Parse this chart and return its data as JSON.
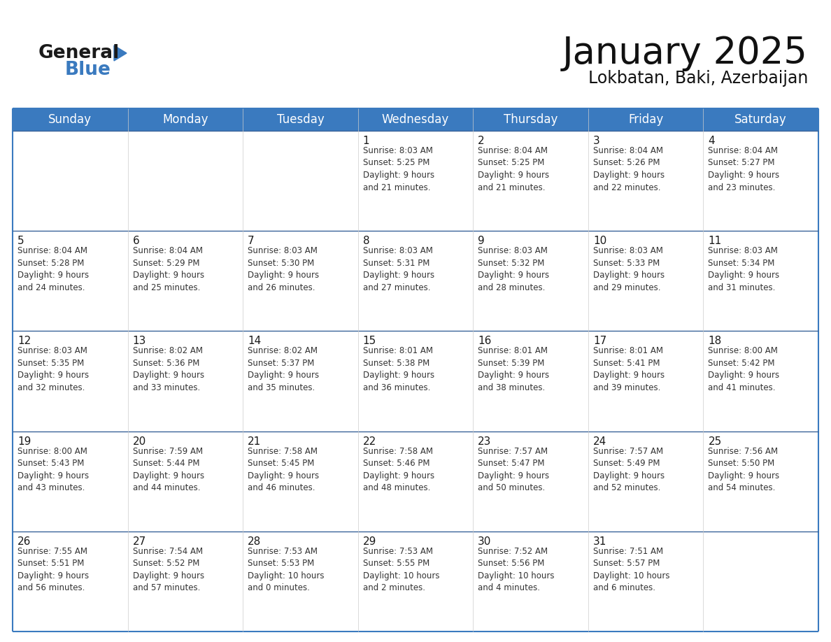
{
  "title": "January 2025",
  "subtitle": "Lokbatan, Baki, Azerbaijan",
  "header_color": "#3a7abf",
  "header_text_color": "#ffffff",
  "day_names": [
    "Sunday",
    "Monday",
    "Tuesday",
    "Wednesday",
    "Thursday",
    "Friday",
    "Saturday"
  ],
  "cell_bg": "#ffffff",
  "row_separator_color": "#3a6499",
  "outer_border_color": "#3a7abf",
  "text_color": "#333333",
  "day_num_color": "#1a1a1a",
  "calendar": [
    [
      {
        "day": "",
        "info": ""
      },
      {
        "day": "",
        "info": ""
      },
      {
        "day": "",
        "info": ""
      },
      {
        "day": "1",
        "info": "Sunrise: 8:03 AM\nSunset: 5:25 PM\nDaylight: 9 hours\nand 21 minutes."
      },
      {
        "day": "2",
        "info": "Sunrise: 8:04 AM\nSunset: 5:25 PM\nDaylight: 9 hours\nand 21 minutes."
      },
      {
        "day": "3",
        "info": "Sunrise: 8:04 AM\nSunset: 5:26 PM\nDaylight: 9 hours\nand 22 minutes."
      },
      {
        "day": "4",
        "info": "Sunrise: 8:04 AM\nSunset: 5:27 PM\nDaylight: 9 hours\nand 23 minutes."
      }
    ],
    [
      {
        "day": "5",
        "info": "Sunrise: 8:04 AM\nSunset: 5:28 PM\nDaylight: 9 hours\nand 24 minutes."
      },
      {
        "day": "6",
        "info": "Sunrise: 8:04 AM\nSunset: 5:29 PM\nDaylight: 9 hours\nand 25 minutes."
      },
      {
        "day": "7",
        "info": "Sunrise: 8:03 AM\nSunset: 5:30 PM\nDaylight: 9 hours\nand 26 minutes."
      },
      {
        "day": "8",
        "info": "Sunrise: 8:03 AM\nSunset: 5:31 PM\nDaylight: 9 hours\nand 27 minutes."
      },
      {
        "day": "9",
        "info": "Sunrise: 8:03 AM\nSunset: 5:32 PM\nDaylight: 9 hours\nand 28 minutes."
      },
      {
        "day": "10",
        "info": "Sunrise: 8:03 AM\nSunset: 5:33 PM\nDaylight: 9 hours\nand 29 minutes."
      },
      {
        "day": "11",
        "info": "Sunrise: 8:03 AM\nSunset: 5:34 PM\nDaylight: 9 hours\nand 31 minutes."
      }
    ],
    [
      {
        "day": "12",
        "info": "Sunrise: 8:03 AM\nSunset: 5:35 PM\nDaylight: 9 hours\nand 32 minutes."
      },
      {
        "day": "13",
        "info": "Sunrise: 8:02 AM\nSunset: 5:36 PM\nDaylight: 9 hours\nand 33 minutes."
      },
      {
        "day": "14",
        "info": "Sunrise: 8:02 AM\nSunset: 5:37 PM\nDaylight: 9 hours\nand 35 minutes."
      },
      {
        "day": "15",
        "info": "Sunrise: 8:01 AM\nSunset: 5:38 PM\nDaylight: 9 hours\nand 36 minutes."
      },
      {
        "day": "16",
        "info": "Sunrise: 8:01 AM\nSunset: 5:39 PM\nDaylight: 9 hours\nand 38 minutes."
      },
      {
        "day": "17",
        "info": "Sunrise: 8:01 AM\nSunset: 5:41 PM\nDaylight: 9 hours\nand 39 minutes."
      },
      {
        "day": "18",
        "info": "Sunrise: 8:00 AM\nSunset: 5:42 PM\nDaylight: 9 hours\nand 41 minutes."
      }
    ],
    [
      {
        "day": "19",
        "info": "Sunrise: 8:00 AM\nSunset: 5:43 PM\nDaylight: 9 hours\nand 43 minutes."
      },
      {
        "day": "20",
        "info": "Sunrise: 7:59 AM\nSunset: 5:44 PM\nDaylight: 9 hours\nand 44 minutes."
      },
      {
        "day": "21",
        "info": "Sunrise: 7:58 AM\nSunset: 5:45 PM\nDaylight: 9 hours\nand 46 minutes."
      },
      {
        "day": "22",
        "info": "Sunrise: 7:58 AM\nSunset: 5:46 PM\nDaylight: 9 hours\nand 48 minutes."
      },
      {
        "day": "23",
        "info": "Sunrise: 7:57 AM\nSunset: 5:47 PM\nDaylight: 9 hours\nand 50 minutes."
      },
      {
        "day": "24",
        "info": "Sunrise: 7:57 AM\nSunset: 5:49 PM\nDaylight: 9 hours\nand 52 minutes."
      },
      {
        "day": "25",
        "info": "Sunrise: 7:56 AM\nSunset: 5:50 PM\nDaylight: 9 hours\nand 54 minutes."
      }
    ],
    [
      {
        "day": "26",
        "info": "Sunrise: 7:55 AM\nSunset: 5:51 PM\nDaylight: 9 hours\nand 56 minutes."
      },
      {
        "day": "27",
        "info": "Sunrise: 7:54 AM\nSunset: 5:52 PM\nDaylight: 9 hours\nand 57 minutes."
      },
      {
        "day": "28",
        "info": "Sunrise: 7:53 AM\nSunset: 5:53 PM\nDaylight: 10 hours\nand 0 minutes."
      },
      {
        "day": "29",
        "info": "Sunrise: 7:53 AM\nSunset: 5:55 PM\nDaylight: 10 hours\nand 2 minutes."
      },
      {
        "day": "30",
        "info": "Sunrise: 7:52 AM\nSunset: 5:56 PM\nDaylight: 10 hours\nand 4 minutes."
      },
      {
        "day": "31",
        "info": "Sunrise: 7:51 AM\nSunset: 5:57 PM\nDaylight: 10 hours\nand 6 minutes."
      },
      {
        "day": "",
        "info": ""
      }
    ]
  ],
  "logo_general_color": "#1a1a1a",
  "logo_blue_color": "#3a7abf",
  "title_fontsize": 38,
  "subtitle_fontsize": 17,
  "header_fontsize": 12,
  "day_num_fontsize": 11,
  "info_fontsize": 8.5
}
